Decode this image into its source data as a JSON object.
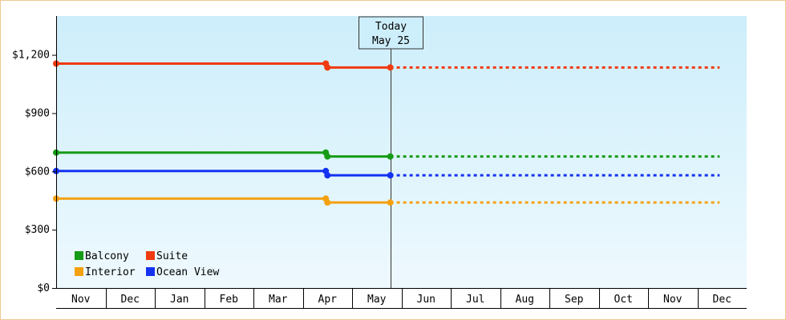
{
  "chart_data": {
    "type": "line",
    "x": [
      "2023-11-01",
      "2023-12-01",
      "2024-01-01",
      "2024-02-01",
      "2024-03-01",
      "2024-04-01",
      "2024-05-01",
      "2024-06-01",
      "2024-07-01",
      "2024-08-01",
      "2024-09-01",
      "2024-10-01",
      "2024-11-01",
      "2024-12-01"
    ],
    "month_labels": [
      "Nov",
      "Dec",
      "Jan",
      "Feb",
      "Mar",
      "Apr",
      "May",
      "Jun",
      "Jul",
      "Aug",
      "Sep",
      "Oct",
      "Nov",
      "Dec"
    ],
    "yticks": [
      {
        "value": 0,
        "label": "$0"
      },
      {
        "value": 300,
        "label": "$300"
      },
      {
        "value": 600,
        "label": "$600"
      },
      {
        "value": 900,
        "label": "$900"
      },
      {
        "value": 1200,
        "label": "$1,200"
      }
    ],
    "ylim": [
      0,
      1400
    ],
    "background": {
      "top": "#cdeefb",
      "bottom": "#eef9fe"
    },
    "today": {
      "line1": "Today",
      "line2": "May 25",
      "date": "2024-05-25"
    },
    "projection_end": "2024-12-15",
    "series": [
      {
        "name": "Suite",
        "color": "#f03a10",
        "points": [
          [
            "2023-11-01",
            1155
          ],
          [
            "2024-04-15",
            1155
          ],
          [
            "2024-04-16",
            1135
          ],
          [
            "2024-05-25",
            1135
          ]
        ],
        "projected": 1135
      },
      {
        "name": "Balcony",
        "color": "#169b16",
        "points": [
          [
            "2023-11-01",
            697
          ],
          [
            "2024-04-15",
            697
          ],
          [
            "2024-04-16",
            677
          ],
          [
            "2024-05-25",
            677
          ]
        ],
        "projected": 677
      },
      {
        "name": "Ocean View",
        "color": "#1432f0",
        "points": [
          [
            "2023-11-01",
            602
          ],
          [
            "2024-04-15",
            602
          ],
          [
            "2024-04-16",
            580
          ],
          [
            "2024-05-25",
            580
          ]
        ],
        "projected": 580
      },
      {
        "name": "Interior",
        "color": "#f5a00f",
        "points": [
          [
            "2023-11-01",
            460
          ],
          [
            "2024-04-15",
            460
          ],
          [
            "2024-04-16",
            440
          ],
          [
            "2024-05-25",
            440
          ]
        ],
        "projected": 440
      }
    ],
    "legend": [
      {
        "name": "Balcony",
        "color": "#169b16"
      },
      {
        "name": "Suite",
        "color": "#f03a10"
      },
      {
        "name": "Interior",
        "color": "#f5a00f"
      },
      {
        "name": "Ocean View",
        "color": "#1432f0"
      }
    ],
    "legend_position": "bottom-left",
    "grid": false
  }
}
